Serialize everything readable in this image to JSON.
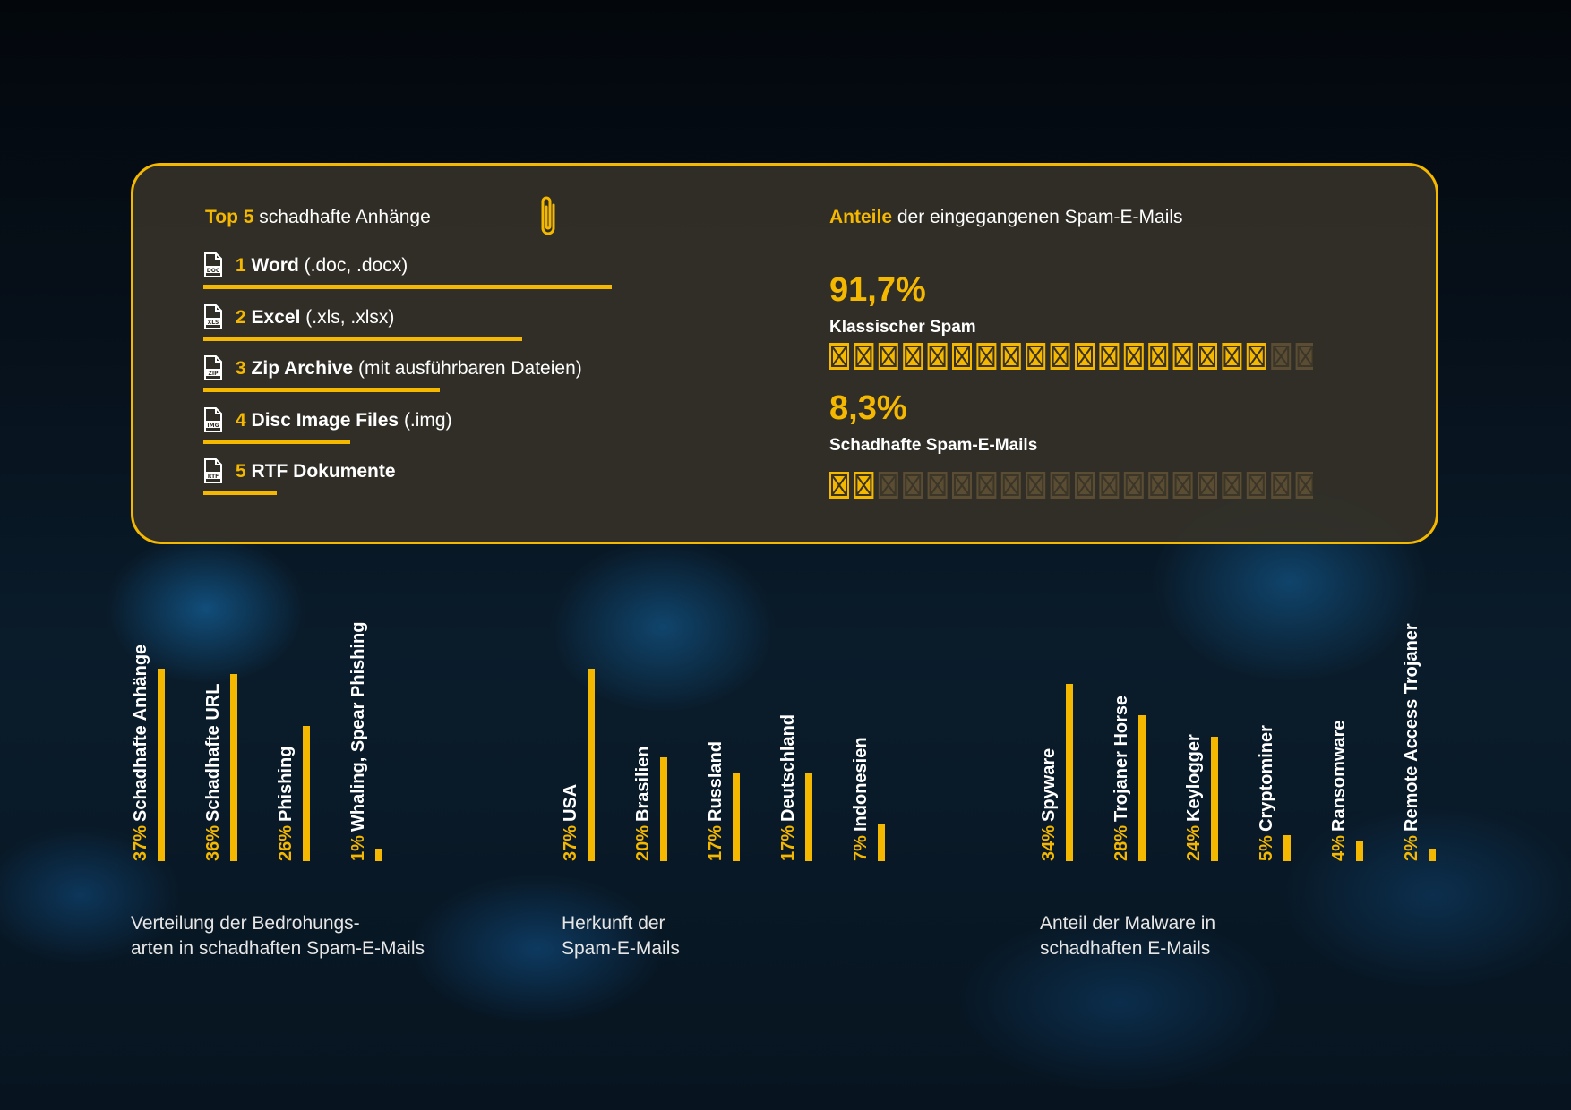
{
  "attachments": {
    "title_highlight": "Top 5",
    "title_rest": " schadhafte Anhänge",
    "items": [
      {
        "rank": "1",
        "name": "Word",
        "ext": " (.doc, .docx)",
        "icon": "DOC",
        "bar": 1.0
      },
      {
        "rank": "2",
        "name": "Excel",
        "ext": " (.xls, .xlsx)",
        "icon": "XLS",
        "bar": 0.78
      },
      {
        "rank": "3",
        "name": "Zip Archive",
        "ext": " (mit ausführbaren Dateien)",
        "icon": "ZIP",
        "bar": 0.58
      },
      {
        "rank": "4",
        "name": "Disc Image Files",
        "ext": " (.img)",
        "icon": "IMG",
        "bar": 0.36
      },
      {
        "rank": "5",
        "name": "RTF Dokumente",
        "ext": "",
        "icon": "RTF",
        "bar": 0.18
      }
    ]
  },
  "shares": {
    "title_highlight": "Anteile",
    "title_rest": " der eingegangenen Spam-E-Mails",
    "classic": {
      "value": "91,7%",
      "label": "Klassischer Spam",
      "filled": 18,
      "total": 20
    },
    "malicious": {
      "value": "8,3%",
      "label": "Schadhafte Spam-E-Mails",
      "filled": 2,
      "total": 20
    }
  },
  "chart_data": [
    {
      "type": "bar",
      "caption": [
        "Verteilung der Bedrohungs-",
        "arten in schadhaften Spam-E-Mails"
      ],
      "categories": [
        "Schadhafte Anhänge",
        "Schadhafte URL",
        "Phishing",
        "Whaling, Spear Phishing"
      ],
      "labels": [
        "37%",
        "36%",
        "26%",
        "1%"
      ],
      "values": [
        37,
        36,
        26,
        1
      ]
    },
    {
      "type": "bar",
      "caption": [
        "Herkunft der",
        "Spam-E-Mails"
      ],
      "categories": [
        "USA",
        "Brasilien",
        "Russland",
        "Deutschland",
        "Indonesien"
      ],
      "labels": [
        "37%",
        "20%",
        "17%",
        "17%",
        "7%"
      ],
      "values": [
        37,
        20,
        17,
        17,
        7
      ]
    },
    {
      "type": "bar",
      "caption": [
        "Anteil der Malware in",
        "schadhaften E-Mails"
      ],
      "categories": [
        "Spyware",
        "Trojaner Horse",
        "Keylogger",
        "Cryptominer",
        "Ransomware",
        "Remote Access Trojaner"
      ],
      "labels": [
        "34%",
        "28%",
        "24%",
        "5%",
        "4%",
        "2%"
      ],
      "values": [
        34,
        28,
        24,
        5,
        4,
        2
      ]
    }
  ],
  "colors": {
    "accent": "#f5b800",
    "panel": "#343028",
    "envelope_dim": "#5a4d33"
  }
}
